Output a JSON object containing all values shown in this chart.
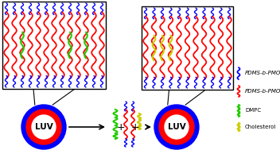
{
  "fig_width": 3.52,
  "fig_height": 1.89,
  "dpi": 100,
  "bg_color": "#ffffff",
  "polymer_color": "#ff0000",
  "dmpc_color": "#22cc00",
  "cholesterol_color": "#cccc00",
  "blue_color": "#0000ff",
  "black": "#000000",
  "luv_outer_color": "#0000ff",
  "luv_inner_color": "#ff0000",
  "luv_label": "LUV",
  "legend_blue_label": "PDMS-b-PMOXA",
  "legend_red_label": "PDMS-b-PMOXA",
  "legend_green_label": "DMPC",
  "legend_yellow_label": "Cholesterol"
}
